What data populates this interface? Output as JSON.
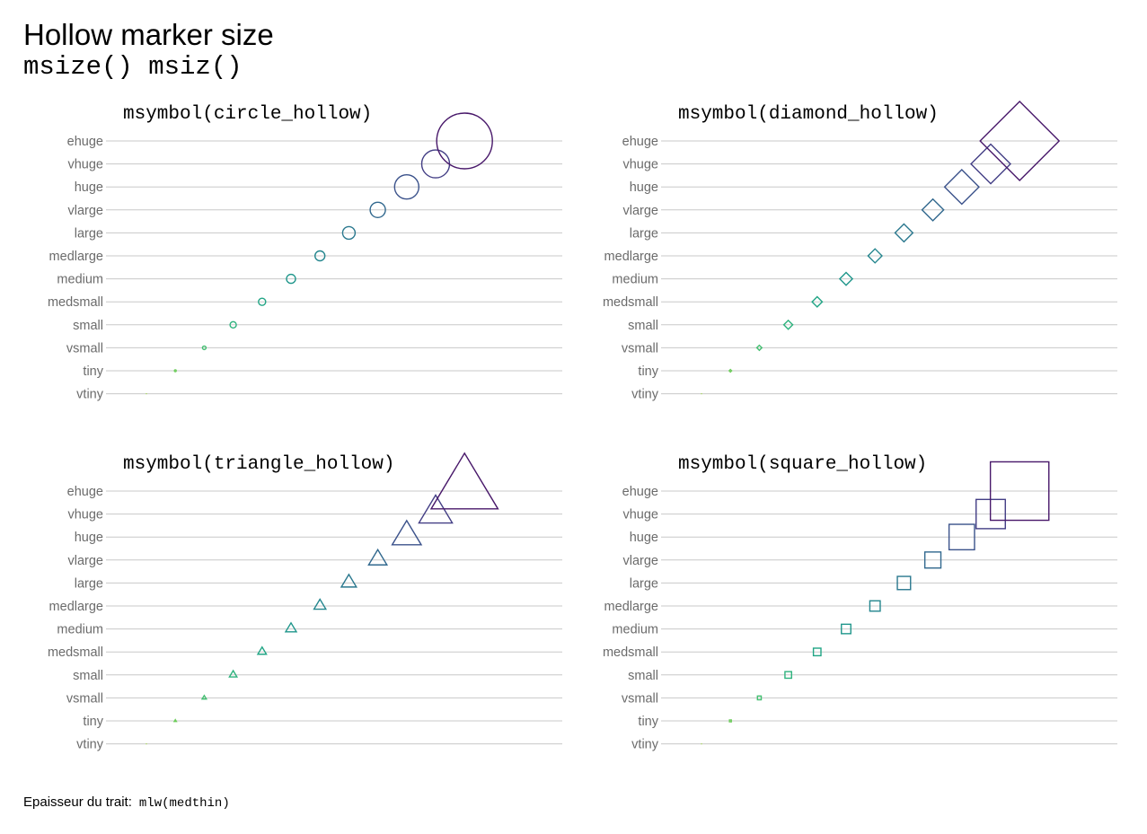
{
  "header": {
    "title": "Hollow marker size",
    "subtitle": "msize() msiz()"
  },
  "footer": {
    "label": "Epaisseur du trait:",
    "code": "mlw(medthin)"
  },
  "chart_data": [
    {
      "type": "scatter",
      "title": "msymbol(circle_hollow)",
      "marker": "circle",
      "categories": [
        "vtiny",
        "tiny",
        "vsmall",
        "small",
        "medsmall",
        "medium",
        "medlarge",
        "large",
        "vlarge",
        "huge",
        "vhuge",
        "ehuge"
      ],
      "x": [
        1,
        2,
        3,
        4,
        5,
        6,
        7,
        8,
        9,
        10,
        11,
        12
      ],
      "marker_size": [
        0,
        2,
        4,
        7,
        8,
        10,
        11,
        14,
        17,
        27,
        31,
        62
      ],
      "grid": true
    },
    {
      "type": "scatter",
      "title": "msymbol(diamond_hollow)",
      "marker": "diamond",
      "categories": [
        "vtiny",
        "tiny",
        "vsmall",
        "small",
        "medsmall",
        "medium",
        "medlarge",
        "large",
        "vlarge",
        "huge",
        "vhuge",
        "ehuge"
      ],
      "x": [
        1,
        2,
        3,
        4,
        5,
        6,
        7,
        8,
        9,
        10,
        11,
        12
      ],
      "marker_size": [
        0,
        2,
        4,
        7,
        8,
        10,
        11,
        14,
        17,
        27,
        31,
        62
      ],
      "grid": true
    },
    {
      "type": "scatter",
      "title": "msymbol(triangle_hollow)",
      "marker": "triangle",
      "categories": [
        "vtiny",
        "tiny",
        "vsmall",
        "small",
        "medsmall",
        "medium",
        "medlarge",
        "large",
        "vlarge",
        "huge",
        "vhuge",
        "ehuge"
      ],
      "x": [
        1,
        2,
        3,
        4,
        5,
        6,
        7,
        8,
        9,
        10,
        11,
        12
      ],
      "marker_size": [
        0,
        2,
        4,
        7,
        8,
        10,
        11,
        14,
        17,
        27,
        31,
        62
      ],
      "grid": true
    },
    {
      "type": "scatter",
      "title": "msymbol(square_hollow)",
      "marker": "square",
      "categories": [
        "vtiny",
        "tiny",
        "vsmall",
        "small",
        "medsmall",
        "medium",
        "medlarge",
        "large",
        "vlarge",
        "huge",
        "vhuge",
        "ehuge"
      ],
      "x": [
        1,
        2,
        3,
        4,
        5,
        6,
        7,
        8,
        9,
        10,
        11,
        12
      ],
      "marker_size": [
        0,
        2,
        4,
        7,
        8,
        10,
        11,
        14,
        17,
        27,
        31,
        62
      ],
      "grid": true
    }
  ],
  "palette": [
    "#c2df23",
    "#9ad93c",
    "#6ccd5a",
    "#43bf71",
    "#2db27d",
    "#21a585",
    "#1f968b",
    "#24868e",
    "#2a788e",
    "#31688e",
    "#3b528b",
    "#433e85",
    "#48186a",
    "#440154"
  ]
}
